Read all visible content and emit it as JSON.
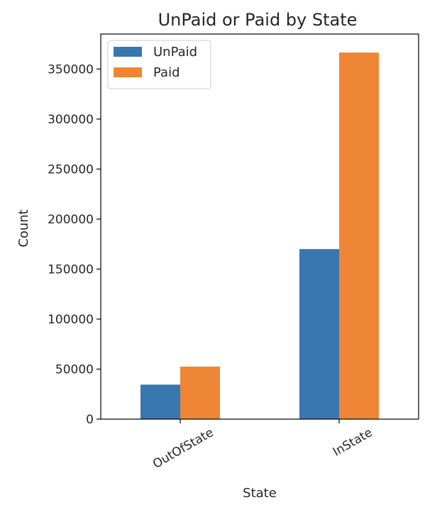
{
  "chart_data": {
    "type": "bar",
    "title": "UnPaid or Paid by State",
    "xlabel": "State",
    "ylabel": "Count",
    "categories": [
      "OutOfState",
      "InState"
    ],
    "series": [
      {
        "name": "UnPaid",
        "values": [
          34500,
          170000
        ],
        "color": "#3a76af"
      },
      {
        "name": "Paid",
        "values": [
          52500,
          366500
        ],
        "color": "#ef8636"
      }
    ],
    "ylim": [
      0,
      385000
    ],
    "yticks": [
      0,
      50000,
      100000,
      150000,
      200000,
      250000,
      300000,
      350000
    ],
    "ytick_labels": [
      "0",
      "50000",
      "100000",
      "150000",
      "200000",
      "250000",
      "300000",
      "350000"
    ],
    "grid": false,
    "legend_position": "top-left"
  }
}
